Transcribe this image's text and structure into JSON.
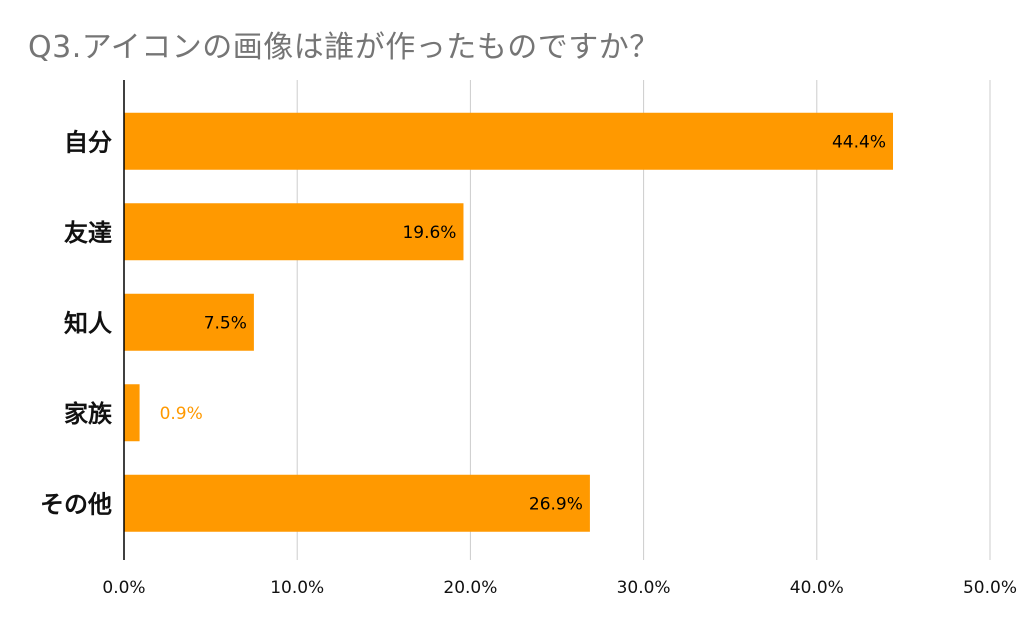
{
  "title": "Q3.アイコンの画像は誰が作ったものですか？",
  "colors": {
    "bar": "#FF9900",
    "grid": "#CCCCCC",
    "axis": "#000000",
    "label_inside": "#000000",
    "label_outside": "#FF9900"
  },
  "chart_data": {
    "type": "bar",
    "orientation": "horizontal",
    "title": "Q3.アイコンの画像は誰が作ったものですか？",
    "categories": [
      "自分",
      "友達",
      "知人",
      "家族",
      "その他"
    ],
    "values": [
      44.4,
      19.6,
      7.5,
      0.9,
      26.9
    ],
    "value_labels": [
      "44.4%",
      "19.6%",
      "7.5%",
      "0.9%",
      "26.9%"
    ],
    "xlim": [
      0,
      50
    ],
    "xticks": [
      0,
      10,
      20,
      30,
      40,
      50
    ],
    "xtick_labels": [
      "0.0%",
      "10.0%",
      "20.0%",
      "30.0%",
      "40.0%",
      "50.0%"
    ],
    "grid": true,
    "legend": "none"
  }
}
